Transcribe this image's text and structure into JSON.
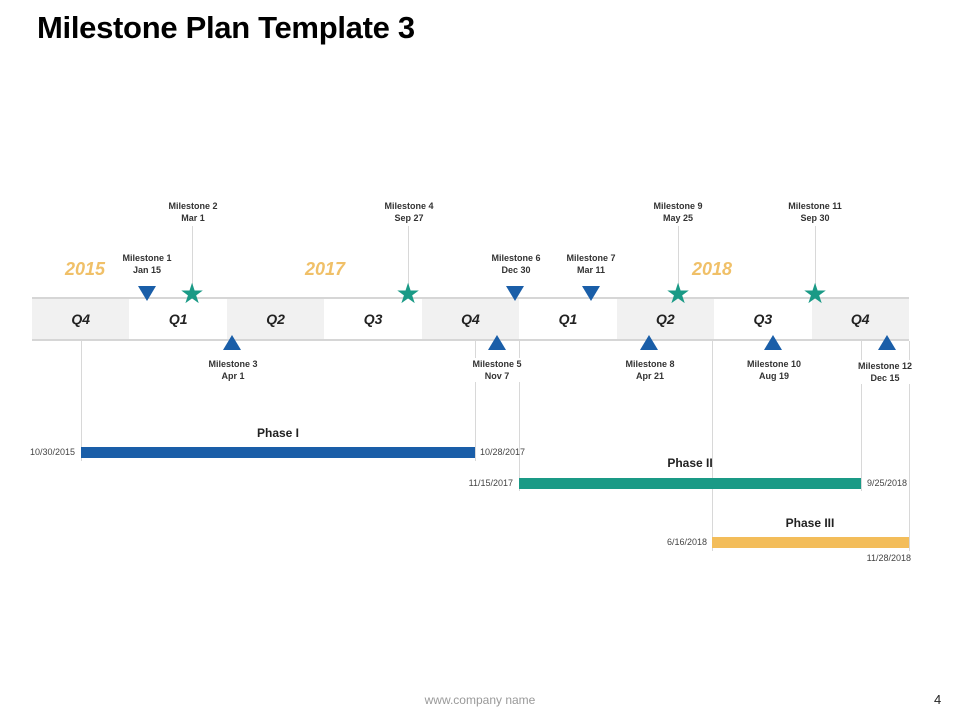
{
  "title": "Milestone Plan Template 3",
  "years": [
    "2015",
    "2017",
    "2018"
  ],
  "quarters": [
    "Q4",
    "Q1",
    "Q2",
    "Q3",
    "Q4",
    "Q1",
    "Q2",
    "Q3",
    "Q4"
  ],
  "milestones": [
    {
      "name": "Milestone 1",
      "date": "Jan 15",
      "marker": "triangle-down"
    },
    {
      "name": "Milestone 2",
      "date": "Mar 1",
      "marker": "star"
    },
    {
      "name": "Milestone 3",
      "date": "Apr 1",
      "marker": "triangle-up"
    },
    {
      "name": "Milestone 4",
      "date": "Sep 27",
      "marker": "star"
    },
    {
      "name": "Milestone 5",
      "date": "Nov 7",
      "marker": "triangle-up"
    },
    {
      "name": "Milestone 6",
      "date": "Dec 30",
      "marker": "triangle-down"
    },
    {
      "name": "Milestone 7",
      "date": "Mar 11",
      "marker": "triangle-down"
    },
    {
      "name": "Milestone 8",
      "date": "Apr 21",
      "marker": "triangle-up"
    },
    {
      "name": "Milestone 9",
      "date": "May 25",
      "marker": "star"
    },
    {
      "name": "Milestone 10",
      "date": "Aug 19",
      "marker": "triangle-up"
    },
    {
      "name": "Milestone 11",
      "date": "Sep 30",
      "marker": "star"
    },
    {
      "name": "Milestone 12",
      "date": "Dec 15",
      "marker": "triangle-up"
    }
  ],
  "phases": [
    {
      "label": "Phase I",
      "start": "10/30/2015",
      "end": "10/28/2017",
      "color": "#1a5ea8"
    },
    {
      "label": "Phase II",
      "start": "11/15/2017",
      "end": "9/25/2018",
      "color": "#1a9a86"
    },
    {
      "label": "Phase III",
      "start": "6/16/2018",
      "end": "11/28/2018",
      "color": "#f3bd5a"
    }
  ],
  "colors": {
    "year": "#f0c068",
    "triangle": "#1a5ea8",
    "star": "#1a9a86",
    "band_shade": "#f1f1f1"
  },
  "footer": {
    "website": "www.company name",
    "page_number": "4"
  }
}
